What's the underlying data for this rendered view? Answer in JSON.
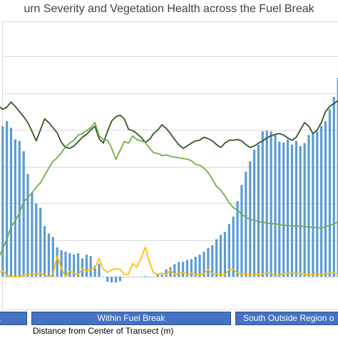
{
  "chart_data": {
    "type": "bar",
    "title": "urn Severity and Vegetation Health across the Fuel Break",
    "xlabel": "Distance from Center of Transect (m)",
    "ylabel": "",
    "ylim": [
      -30,
      330
    ],
    "grid": true,
    "n_points": 84,
    "regions": [
      {
        "label": "k",
        "start": 0,
        "end": 7
      },
      {
        "label": "Within Fuel Break",
        "start": 7,
        "end": 56
      },
      {
        "label": "South Outside Region o",
        "start": 57,
        "end": 84
      }
    ],
    "series": [
      {
        "type": "bar",
        "color": "#5b9bd5",
        "values": [
          222,
          220,
          205,
          212,
          203,
          187,
          185,
          171,
          140,
          115,
          100,
          94,
          69,
          59,
          54,
          40,
          36,
          34,
          32,
          30,
          32,
          25,
          30,
          28,
          15,
          18,
          0,
          -7,
          -8,
          -8,
          -6,
          0,
          0,
          0,
          0,
          0,
          1,
          0,
          0,
          3,
          3,
          10,
          13,
          17,
          20,
          20,
          23,
          24,
          27,
          30,
          34,
          39,
          43,
          51,
          57,
          61,
          72,
          82,
          103,
          125,
          143,
          157,
          173,
          180,
          198,
          199,
          198,
          193,
          184,
          183,
          187,
          180,
          185,
          178,
          182,
          193,
          196,
          198,
          205,
          212,
          228,
          245,
          271,
          277
        ]
      },
      {
        "type": "line",
        "color": "#375623",
        "values": [
          230,
          233,
          228,
          231,
          238,
          232,
          225,
          218,
          210,
          198,
          185,
          200,
          215,
          210,
          203,
          196,
          183,
          176,
          175,
          178,
          184,
          190,
          194,
          200,
          205,
          188,
          182,
          198,
          212,
          218,
          220,
          215,
          201,
          199,
          195,
          190,
          183,
          187,
          195,
          200,
          207,
          202,
          195,
          187,
          180,
          175,
          178,
          182,
          185,
          186,
          190,
          188,
          185,
          180,
          176,
          182,
          186,
          186,
          187,
          185,
          180,
          176,
          178,
          182,
          185,
          189,
          192,
          194,
          195,
          193,
          189,
          186,
          190,
          200,
          210,
          205,
          195,
          200,
          210,
          225,
          232,
          236,
          240,
          242
        ]
      },
      {
        "type": "line",
        "color": "#70ad47",
        "values": [
          20,
          25,
          38,
          51,
          68,
          76,
          87,
          102,
          108,
          114,
          122,
          128,
          138,
          148,
          157,
          162,
          169,
          177,
          182,
          186,
          193,
          195,
          199,
          203,
          210,
          192,
          187,
          186,
          175,
          160,
          172,
          184,
          182,
          192,
          187,
          185,
          183,
          175,
          169,
          168,
          165,
          166,
          164,
          163,
          162,
          161,
          160,
          158,
          153,
          152,
          148,
          142,
          133,
          123,
          118,
          110,
          101,
          94,
          91,
          85,
          81,
          78,
          77,
          75,
          74,
          73,
          72,
          72,
          71,
          70,
          70,
          69,
          69,
          69,
          68,
          68,
          67,
          67,
          66,
          68,
          70,
          72,
          75,
          80
        ]
      },
      {
        "type": "line",
        "color": "#ffc000",
        "values": [
          1,
          5,
          8,
          2,
          0,
          0,
          0,
          2,
          3,
          4,
          3,
          5,
          2,
          0,
          3,
          28,
          11,
          0,
          8,
          5,
          3,
          10,
          8,
          9,
          12,
          25,
          10,
          6,
          9,
          11,
          10,
          3,
          3,
          18,
          13,
          25,
          40,
          20,
          5,
          3,
          5,
          3,
          9,
          3,
          5,
          6,
          3,
          5,
          3,
          3,
          4,
          10,
          4,
          4,
          3,
          3,
          10,
          10,
          5,
          4,
          3,
          3,
          2,
          3,
          4,
          5,
          4,
          2,
          2,
          4,
          5,
          5,
          4,
          5,
          3,
          3,
          3,
          4,
          3,
          4,
          5,
          5,
          3,
          2
        ]
      }
    ]
  }
}
